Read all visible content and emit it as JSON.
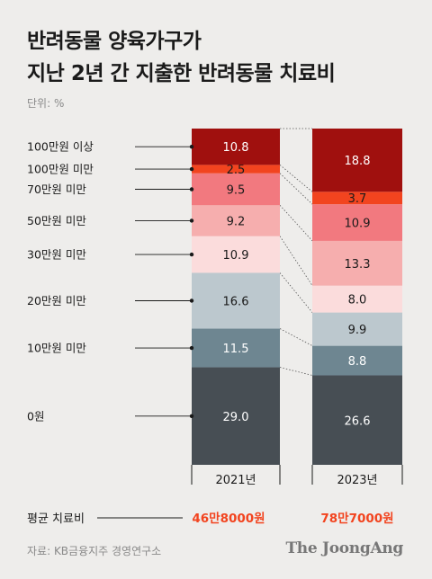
{
  "header": {
    "title_line1": "반려동물 양육가구가",
    "title_line2": "지난 2년 간 지출한 반려동물 치료비",
    "unit": "단위: %"
  },
  "footer": {
    "source": "자료: KB금융지주 경영연구소",
    "brand": "The JoongAng"
  },
  "chart_data": {
    "type": "bar",
    "stacked": true,
    "ylim": [
      0,
      100
    ],
    "categories": [
      "2021년",
      "2023년"
    ],
    "series": [
      {
        "name": "0원",
        "values": [
          29.0,
          26.6
        ],
        "color": "#474e54",
        "label_color": "#ffffff"
      },
      {
        "name": "10만원 미만",
        "values": [
          11.5,
          8.8
        ],
        "color": "#6e8691",
        "label_color": "#ffffff"
      },
      {
        "name": "20만원 미만",
        "values": [
          16.6,
          9.9
        ],
        "color": "#bcc8ce",
        "label_color": "#1a1a1a"
      },
      {
        "name": "30만원 미만",
        "values": [
          10.9,
          8.0
        ],
        "color": "#fbdcdc",
        "label_color": "#1a1a1a"
      },
      {
        "name": "50만원 미만",
        "values": [
          9.2,
          13.3
        ],
        "color": "#f6aeae",
        "label_color": "#1a1a1a"
      },
      {
        "name": "70만원 미만",
        "values": [
          9.5,
          10.9
        ],
        "color": "#f2797f",
        "label_color": "#1a1a1a"
      },
      {
        "name": "100만원 미만",
        "values": [
          2.5,
          3.7
        ],
        "color": "#f2441f",
        "label_color": "#1a1a1a"
      },
      {
        "name": "100만원 이상",
        "values": [
          10.8,
          18.8
        ],
        "color": "#a0100e",
        "label_color": "#ffffff"
      }
    ],
    "value_labels": [
      [
        "29.0",
        "11.5",
        "16.6",
        "10.9",
        "9.2",
        "9.5",
        "2.5",
        "10.8"
      ],
      [
        "26.6",
        "8.8",
        "9.9",
        "8.0",
        "13.3",
        "10.9",
        "3.7",
        "18.8"
      ]
    ],
    "average_cost": {
      "label": "평균 치료비",
      "values": [
        "46만8000원",
        "78만7000원"
      ],
      "color": "#f2441f"
    }
  }
}
